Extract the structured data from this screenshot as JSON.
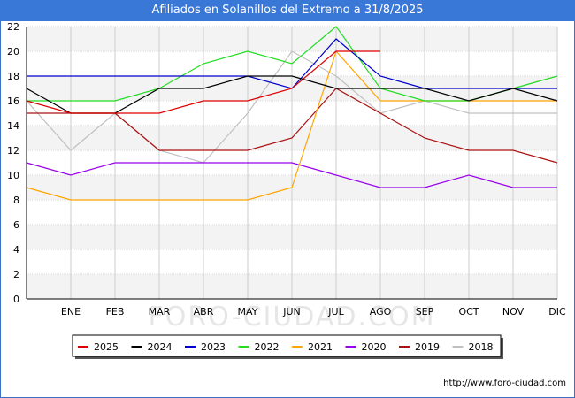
{
  "title": "Afiliados en Solanillos del Extremo a 31/8/2025",
  "watermark": "FORO-CIUDAD.COM",
  "footer_url": "http://www.foro-ciudad.com",
  "chart_data": {
    "type": "line",
    "title": "Afiliados en Solanillos del Extremo a 31/8/2025",
    "categories": [
      "",
      "ENE",
      "FEB",
      "MAR",
      "ABR",
      "MAY",
      "JUN",
      "JUL",
      "AGO",
      "SEP",
      "OCT",
      "NOV",
      "DIC"
    ],
    "ylim": [
      0,
      22
    ],
    "yticks": [
      0,
      2,
      4,
      6,
      8,
      10,
      12,
      14,
      16,
      18,
      20,
      22
    ],
    "grid": true,
    "legend_position": "bottom",
    "series": [
      {
        "name": "2025",
        "color": "#dd0000",
        "values": [
          16,
          15,
          15,
          15,
          16,
          16,
          17,
          20,
          20,
          null,
          null,
          null,
          null
        ]
      },
      {
        "name": "2024",
        "color": "#000000",
        "values": [
          17,
          15,
          15,
          17,
          17,
          18,
          18,
          17,
          17,
          17,
          16,
          17,
          16
        ]
      },
      {
        "name": "2023",
        "color": "#0000cc",
        "values": [
          18,
          18,
          18,
          18,
          18,
          18,
          17,
          21,
          18,
          17,
          17,
          17,
          17
        ]
      },
      {
        "name": "2022",
        "color": "#22dd22",
        "values": [
          16,
          16,
          16,
          17,
          19,
          20,
          19,
          22,
          17,
          16,
          16,
          17,
          18
        ]
      },
      {
        "name": "2021",
        "color": "#ffa500",
        "values": [
          9,
          8,
          8,
          8,
          8,
          8,
          9,
          20,
          16,
          16,
          16,
          16,
          16
        ]
      },
      {
        "name": "2020",
        "color": "#9900ee",
        "values": [
          11,
          10,
          11,
          11,
          11,
          11,
          11,
          10,
          9,
          9,
          10,
          9,
          9
        ]
      },
      {
        "name": "2019",
        "color": "#aa1111",
        "values": [
          15,
          15,
          15,
          12,
          12,
          12,
          13,
          17,
          15,
          13,
          12,
          12,
          11
        ]
      },
      {
        "name": "2018",
        "color": "#c0c0c0",
        "values": [
          16,
          12,
          15,
          12,
          11,
          15,
          20,
          18,
          15,
          16,
          15,
          15,
          15
        ]
      }
    ]
  }
}
